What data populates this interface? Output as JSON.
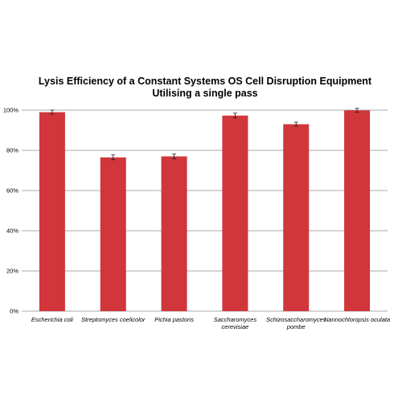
{
  "chart_data": {
    "type": "bar",
    "title": "Lysis Efficiency of a Constant Systems OS Cell Disruption Equipment",
    "subtitle": "Utilising a single pass",
    "xlabel": "",
    "ylabel": "",
    "ylim": [
      0,
      100
    ],
    "y_ticks": [
      0,
      20,
      40,
      60,
      80,
      100
    ],
    "y_tick_labels": [
      "0%",
      "20%",
      "40%",
      "60%",
      "80%",
      "100%"
    ],
    "grid": true,
    "legend": "none",
    "bar_color": "#d0363a",
    "categories": [
      [
        "Escherichia coli"
      ],
      [
        "Streptomyces coelicolor"
      ],
      [
        "Pichia pastoris"
      ],
      [
        "Saccharomyces",
        "cerevisiae"
      ],
      [
        "Schizosaccharomyces",
        "pombe"
      ],
      [
        "Nannochloropsis oculata"
      ]
    ],
    "values": [
      99,
      76.5,
      77,
      97.3,
      93,
      99.9
    ],
    "errors": [
      1.0,
      1.2,
      1.2,
      1.2,
      1.0,
      1.0
    ]
  }
}
